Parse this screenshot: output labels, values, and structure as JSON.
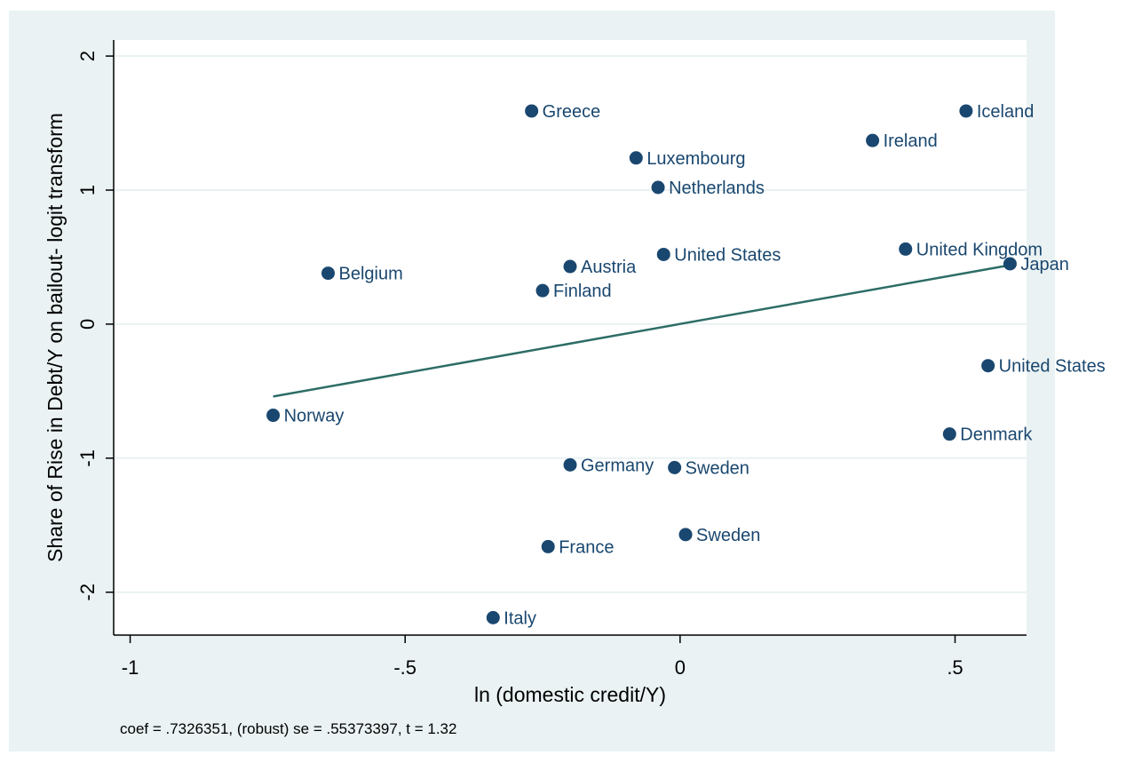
{
  "chart_data": {
    "type": "scatter",
    "title": "",
    "xlabel": "ln (domestic credit/Y)",
    "ylabel": "Share of Rise in Debt/Y on bailout- logit transform",
    "xlim": [
      -1.03,
      0.63
    ],
    "ylim": [
      -2.32,
      2.12
    ],
    "x_ticks": [
      -1,
      -0.5,
      0,
      0.5
    ],
    "x_tick_labels": [
      "-1",
      "-.5",
      "0",
      ".5"
    ],
    "y_ticks": [
      -2,
      -1,
      0,
      1,
      2
    ],
    "y_tick_labels": [
      "-2",
      "-1",
      "0",
      "1",
      "2"
    ],
    "grid": true,
    "points": [
      {
        "label": "Greece",
        "x": -0.27,
        "y": 1.59
      },
      {
        "label": "Iceland",
        "x": 0.52,
        "y": 1.59
      },
      {
        "label": "Ireland",
        "x": 0.35,
        "y": 1.37
      },
      {
        "label": "Luxembourg",
        "x": -0.08,
        "y": 1.24
      },
      {
        "label": "Netherlands",
        "x": -0.04,
        "y": 1.02
      },
      {
        "label": "United Kingdom",
        "x": 0.41,
        "y": 0.56
      },
      {
        "label": "United States",
        "x": -0.03,
        "y": 0.52
      },
      {
        "label": "Japan",
        "x": 0.6,
        "y": 0.45
      },
      {
        "label": "Austria",
        "x": -0.2,
        "y": 0.43
      },
      {
        "label": "Belgium",
        "x": -0.64,
        "y": 0.38
      },
      {
        "label": "Finland",
        "x": -0.25,
        "y": 0.25
      },
      {
        "label": "United States",
        "x": 0.56,
        "y": -0.31
      },
      {
        "label": "Norway",
        "x": -0.74,
        "y": -0.68
      },
      {
        "label": "Denmark",
        "x": 0.49,
        "y": -0.82
      },
      {
        "label": "Germany",
        "x": -0.2,
        "y": -1.05
      },
      {
        "label": "Sweden",
        "x": -0.01,
        "y": -1.07
      },
      {
        "label": "Sweden",
        "x": 0.01,
        "y": -1.57
      },
      {
        "label": "France",
        "x": -0.24,
        "y": -1.66
      },
      {
        "label": "Italy",
        "x": -0.34,
        "y": -2.19
      }
    ],
    "fit_line": {
      "x": [
        -0.74,
        0.6
      ],
      "y": [
        -0.54,
        0.44
      ]
    },
    "colors": {
      "marker": "#1a476f",
      "fit_line": "#2d6d66",
      "background": "#eaf2f3",
      "plot_area": "#ffffff",
      "grid": "#eaf2f3"
    }
  },
  "footnote": "coef = .7326351, (robust) se = .55373397, t = 1.32"
}
